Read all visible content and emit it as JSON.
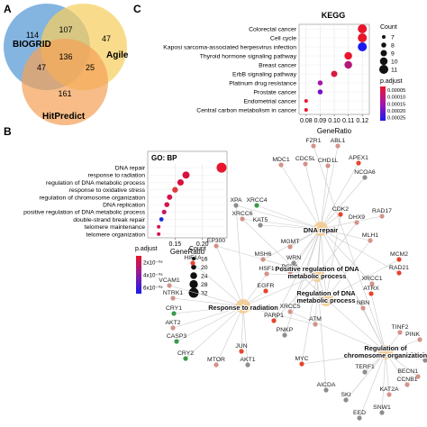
{
  "panels": {
    "a": {
      "label": "A",
      "sets": [
        {
          "name": "BIOGRID",
          "color": "#5b9bd5"
        },
        {
          "name": "Agile",
          "color": "#f7cf5e"
        },
        {
          "name": "HitPredict",
          "color": "#f4a259"
        }
      ],
      "regions": {
        "biogrid_only": "114",
        "biogrid_agile": "107",
        "agile_only": "47",
        "biogrid_hitpredict": "47",
        "all_three": "136",
        "agile_hitpredict": "25",
        "hitpredict_only": "161"
      }
    },
    "c": {
      "label": "C",
      "title": "KEGG",
      "xlabel": "GeneRatio",
      "count_title": "Count",
      "padj_title": "p.adjust",
      "count_legend": [
        {
          "value": 7,
          "label": "7"
        },
        {
          "value": 8,
          "label": "8"
        },
        {
          "value": 9,
          "label": "9"
        },
        {
          "value": 10,
          "label": "10"
        },
        {
          "value": 11,
          "label": "11"
        }
      ],
      "padj_ticks": [
        "0.00005",
        "0.00010",
        "0.00015",
        "0.00020",
        "0.00025"
      ]
    },
    "b": {
      "label": "B",
      "title": "GO: BP",
      "xlabel": "GeneRatio",
      "count_title": "Count",
      "padj_title": "p.adjust",
      "count_legend": [
        {
          "value": 16,
          "label": "16"
        },
        {
          "value": 20,
          "label": "20"
        },
        {
          "value": 24,
          "label": "24"
        },
        {
          "value": 28,
          "label": "28"
        },
        {
          "value": 32,
          "label": "32"
        }
      ],
      "padj_ticks": [
        "2x10⁻⁰⁵",
        "4x10⁻⁰⁵",
        "6x10⁻⁰⁵"
      ]
    }
  },
  "chart_data": [
    {
      "type": "scatter",
      "title": "KEGG",
      "xlabel": "GeneRatio",
      "xlim": [
        0.075,
        0.125
      ],
      "xticks": [
        0.08,
        0.09,
        0.1,
        0.11,
        0.12
      ],
      "xtick_labels": [
        "0.08",
        "0.09",
        "0.10",
        "0.11",
        "0.12"
      ],
      "categories": [
        "Colorectal cancer",
        "Cell cycle",
        "Kaposi sarcoma-associated herpesvirus infection",
        "Thyroid hormone signaling pathway",
        "Breast cancer",
        "ErbB signaling pathway",
        "Platinum drug resistance",
        "Prostate cancer",
        "Endometrial cancer",
        "Central carbon metabolism in cancer"
      ],
      "x": [
        0.12,
        0.12,
        0.12,
        0.11,
        0.11,
        0.1,
        0.09,
        0.09,
        0.08,
        0.08
      ],
      "size": [
        11,
        11,
        11,
        10,
        10,
        9,
        8,
        8,
        7,
        7
      ],
      "color": [
        "#e8162c",
        "#e8162c",
        "#1a1aee",
        "#e8162c",
        "#b5177a",
        "#d91a40",
        "#a515ae",
        "#7a10c8",
        "#e8162c",
        "#e8162c"
      ]
    },
    {
      "type": "scatter",
      "title": "GO: BP",
      "xlabel": "GeneRatio",
      "xlim": [
        0.1,
        0.245
      ],
      "xticks": [
        0.15,
        0.2
      ],
      "xtick_labels": [
        "0.15",
        "0.20"
      ],
      "categories": [
        "DNA repair",
        "response to radiation",
        "regulation of DNA metabolic process",
        "response to oxidative stress",
        "regulation of chromosome organization",
        "DNA replication",
        "positive regulation of DNA metabolic process",
        "double-strand break repair",
        "telomere maintenance",
        "telomere organization"
      ],
      "x": [
        0.235,
        0.17,
        0.16,
        0.15,
        0.14,
        0.135,
        0.13,
        0.125,
        0.12,
        0.12
      ],
      "size": [
        32,
        24,
        22,
        20,
        19,
        18,
        17,
        16,
        14,
        14
      ],
      "color": [
        "#e8162c",
        "#d8103e",
        "#d8103e",
        "#e23a3a",
        "#d6134a",
        "#d6134a",
        "#c61860",
        "#1a2fd6",
        "#d6134a",
        "#d6134a"
      ]
    }
  ],
  "network": {
    "hubs": [
      {
        "label": "DNA repair"
      },
      {
        "label": "Positive regulation of DNA metabolic process"
      },
      {
        "label": "Regulation of DNA metabolic process"
      },
      {
        "label": "Response to radiation"
      },
      {
        "label": "Regulation of chromosome organization"
      }
    ],
    "genes": [
      "FZR1",
      "ABL1",
      "MDC1",
      "CDC5L",
      "CHD1L",
      "APEX1",
      "NCOA6",
      "XPA",
      "XRCC4",
      "CDK2",
      "RAD17",
      "XRCC6",
      "KAT5",
      "DHX9",
      "EP300",
      "MGMT",
      "MLH1",
      "HIF1A",
      "MSH6",
      "WRN",
      "PCNA",
      "MCM2",
      "HSF1",
      "RAD21",
      "VCAM1",
      "EGFR",
      "XRCC1",
      "NTRK1",
      "ATRX",
      "CRY1",
      "XRCC5",
      "NBN",
      "AKT2",
      "PARP1",
      "ATM",
      "CASP3",
      "PNKP",
      "TINF2",
      "PINK",
      "CRY2",
      "MTOR",
      "JUN",
      "AKT1",
      "MYC",
      "CUL3",
      "TERF1",
      "BECN1",
      "CCNB1",
      "AICDA",
      "KAT2A",
      "SKI",
      "SNW1",
      "EED"
    ],
    "colors": {
      "hub": "#f4c98c",
      "edge": "#c9c9c9",
      "gene_default": "#d4938a",
      "gene_high": "#e8442c",
      "gene_low": "#8e8e8e",
      "gene_green": "#3a9a4a"
    }
  }
}
